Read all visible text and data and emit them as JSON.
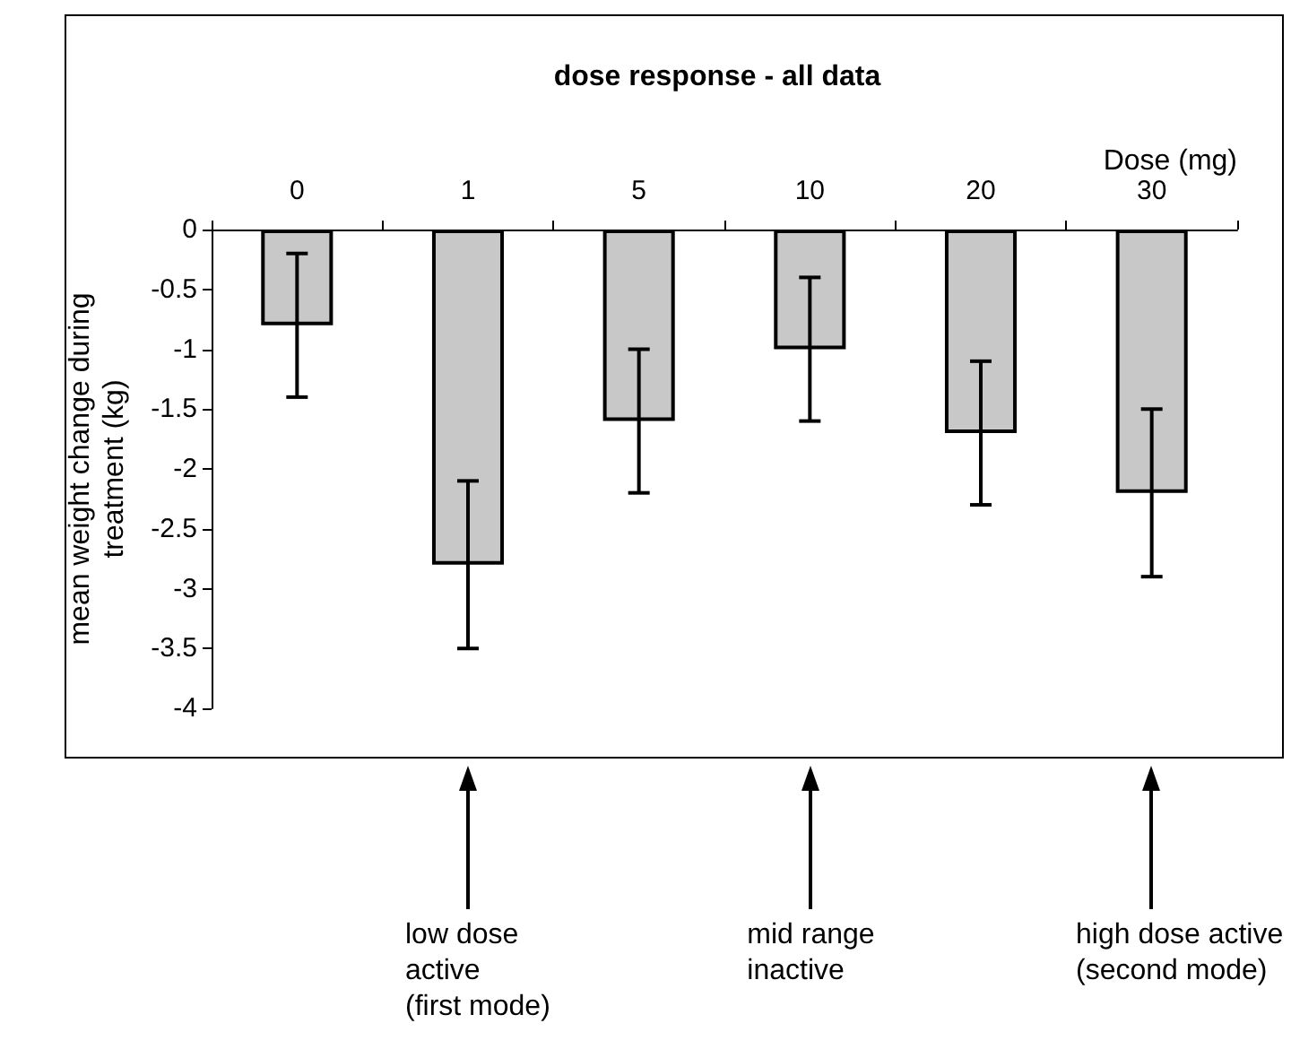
{
  "chart_data": {
    "type": "bar",
    "title": "dose response - all data",
    "xlabel": "Dose (mg)",
    "ylabel": "mean weight change during\ntreatment (kg)",
    "categories": [
      "0",
      "1",
      "5",
      "10",
      "20",
      "30"
    ],
    "values": [
      -0.8,
      -2.8,
      -1.6,
      -1.0,
      -1.7,
      -2.2
    ],
    "errors": [
      0.6,
      0.7,
      0.6,
      0.6,
      0.6,
      0.7
    ],
    "color": "#c8c8c8",
    "ylim": [
      -4,
      0
    ],
    "yticks": [
      -4,
      -3.5,
      -3,
      -2.5,
      -2,
      -1.5,
      -1,
      -0.5,
      0
    ],
    "grid": false,
    "annotations": [
      "low dose\nactive\n(first mode)",
      "mid range\ninactive",
      "high dose active\n(second mode)"
    ]
  }
}
